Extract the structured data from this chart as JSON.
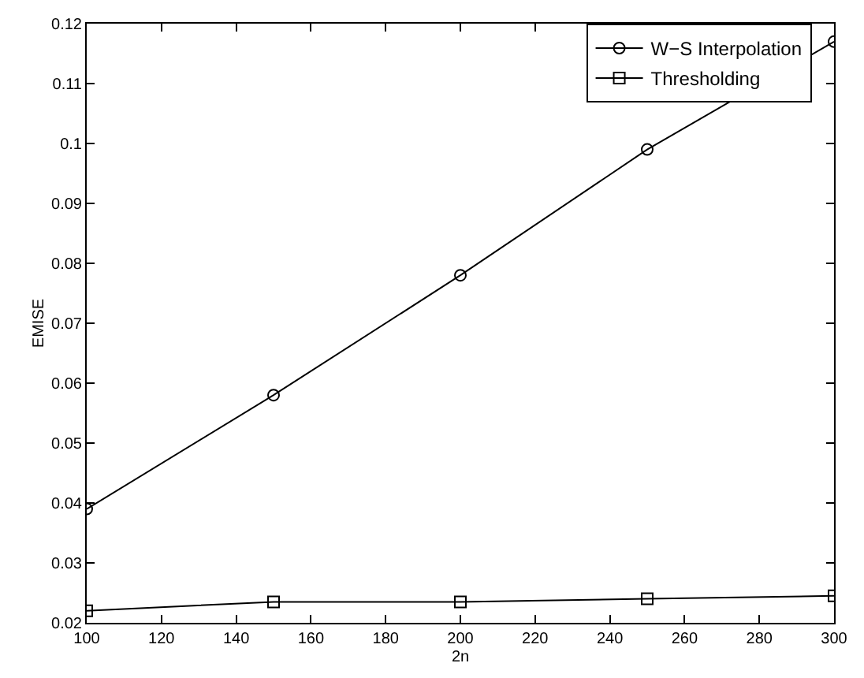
{
  "chart_data": {
    "type": "line",
    "xlabel": "2n",
    "ylabel": "EMISE",
    "x": [
      100,
      150,
      200,
      250,
      300
    ],
    "series": [
      {
        "name": "W−S Interpolation",
        "color": "#000000",
        "marker": "circle",
        "values": [
          0.039,
          0.058,
          0.078,
          0.099,
          0.117
        ]
      },
      {
        "name": "Thresholding",
        "color": "#000000",
        "marker": "square",
        "values": [
          0.022,
          0.0235,
          0.0235,
          0.024,
          0.0245
        ]
      }
    ],
    "xlim": [
      100,
      300
    ],
    "xticks": [
      100,
      120,
      140,
      160,
      180,
      200,
      220,
      240,
      260,
      280,
      300
    ],
    "ylim": [
      0.02,
      0.12
    ],
    "yticks": [
      0.02,
      0.03,
      0.04,
      0.05,
      0.06,
      0.07,
      0.08,
      0.09,
      0.1,
      0.11,
      0.12
    ],
    "legend": "top right",
    "line_style": "solid"
  }
}
